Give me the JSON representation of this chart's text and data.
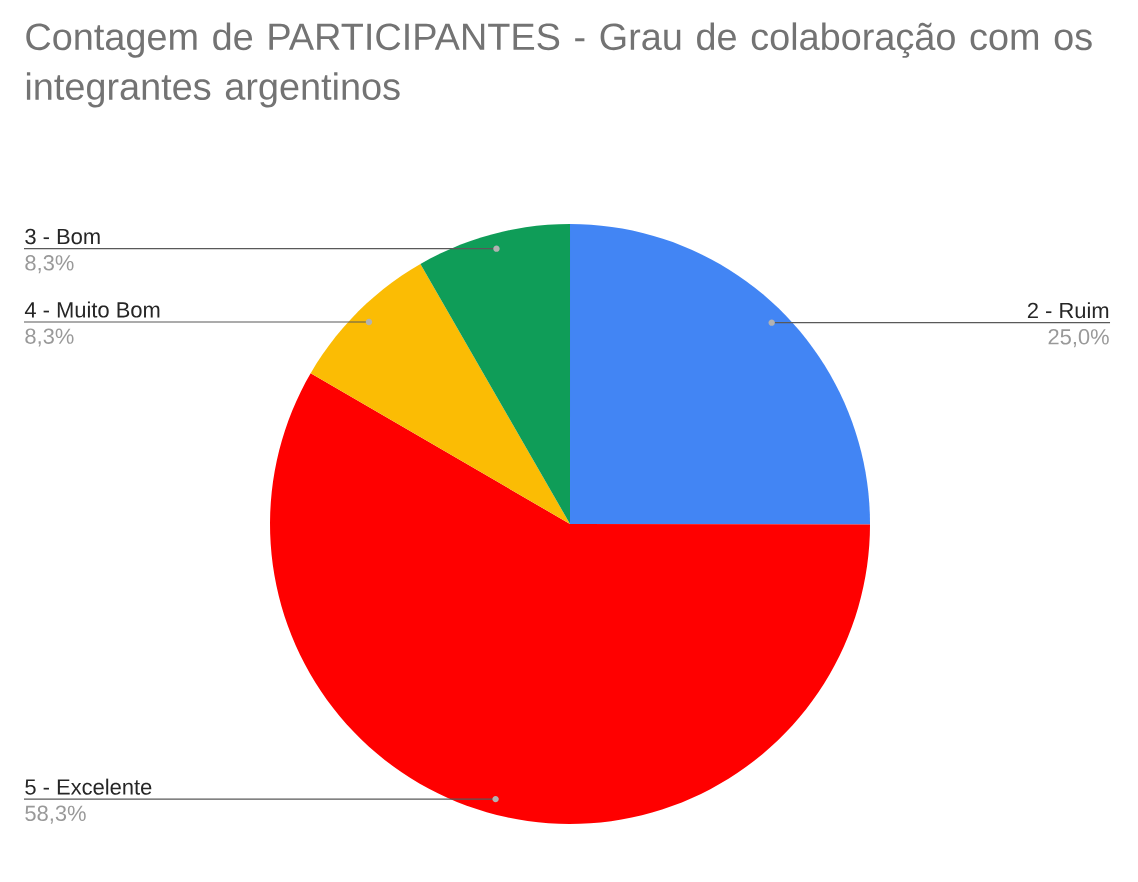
{
  "chart_data": {
    "type": "pie",
    "title": "Contagem de PARTICIPANTES - Grau de colaboração com os integrantes argentinos",
    "categories": [
      "2 - Ruim",
      "5 - Excelente",
      "4 - Muito Bom",
      "3 - Bom"
    ],
    "values": [
      25.0,
      58.3,
      8.3,
      8.3
    ],
    "colors": [
      "#4285f4",
      "#ff0000",
      "#fbbc04",
      "#0f9d58"
    ],
    "value_labels": [
      "25,0%",
      "58,3%",
      "8,3%",
      "8,3%"
    ]
  }
}
